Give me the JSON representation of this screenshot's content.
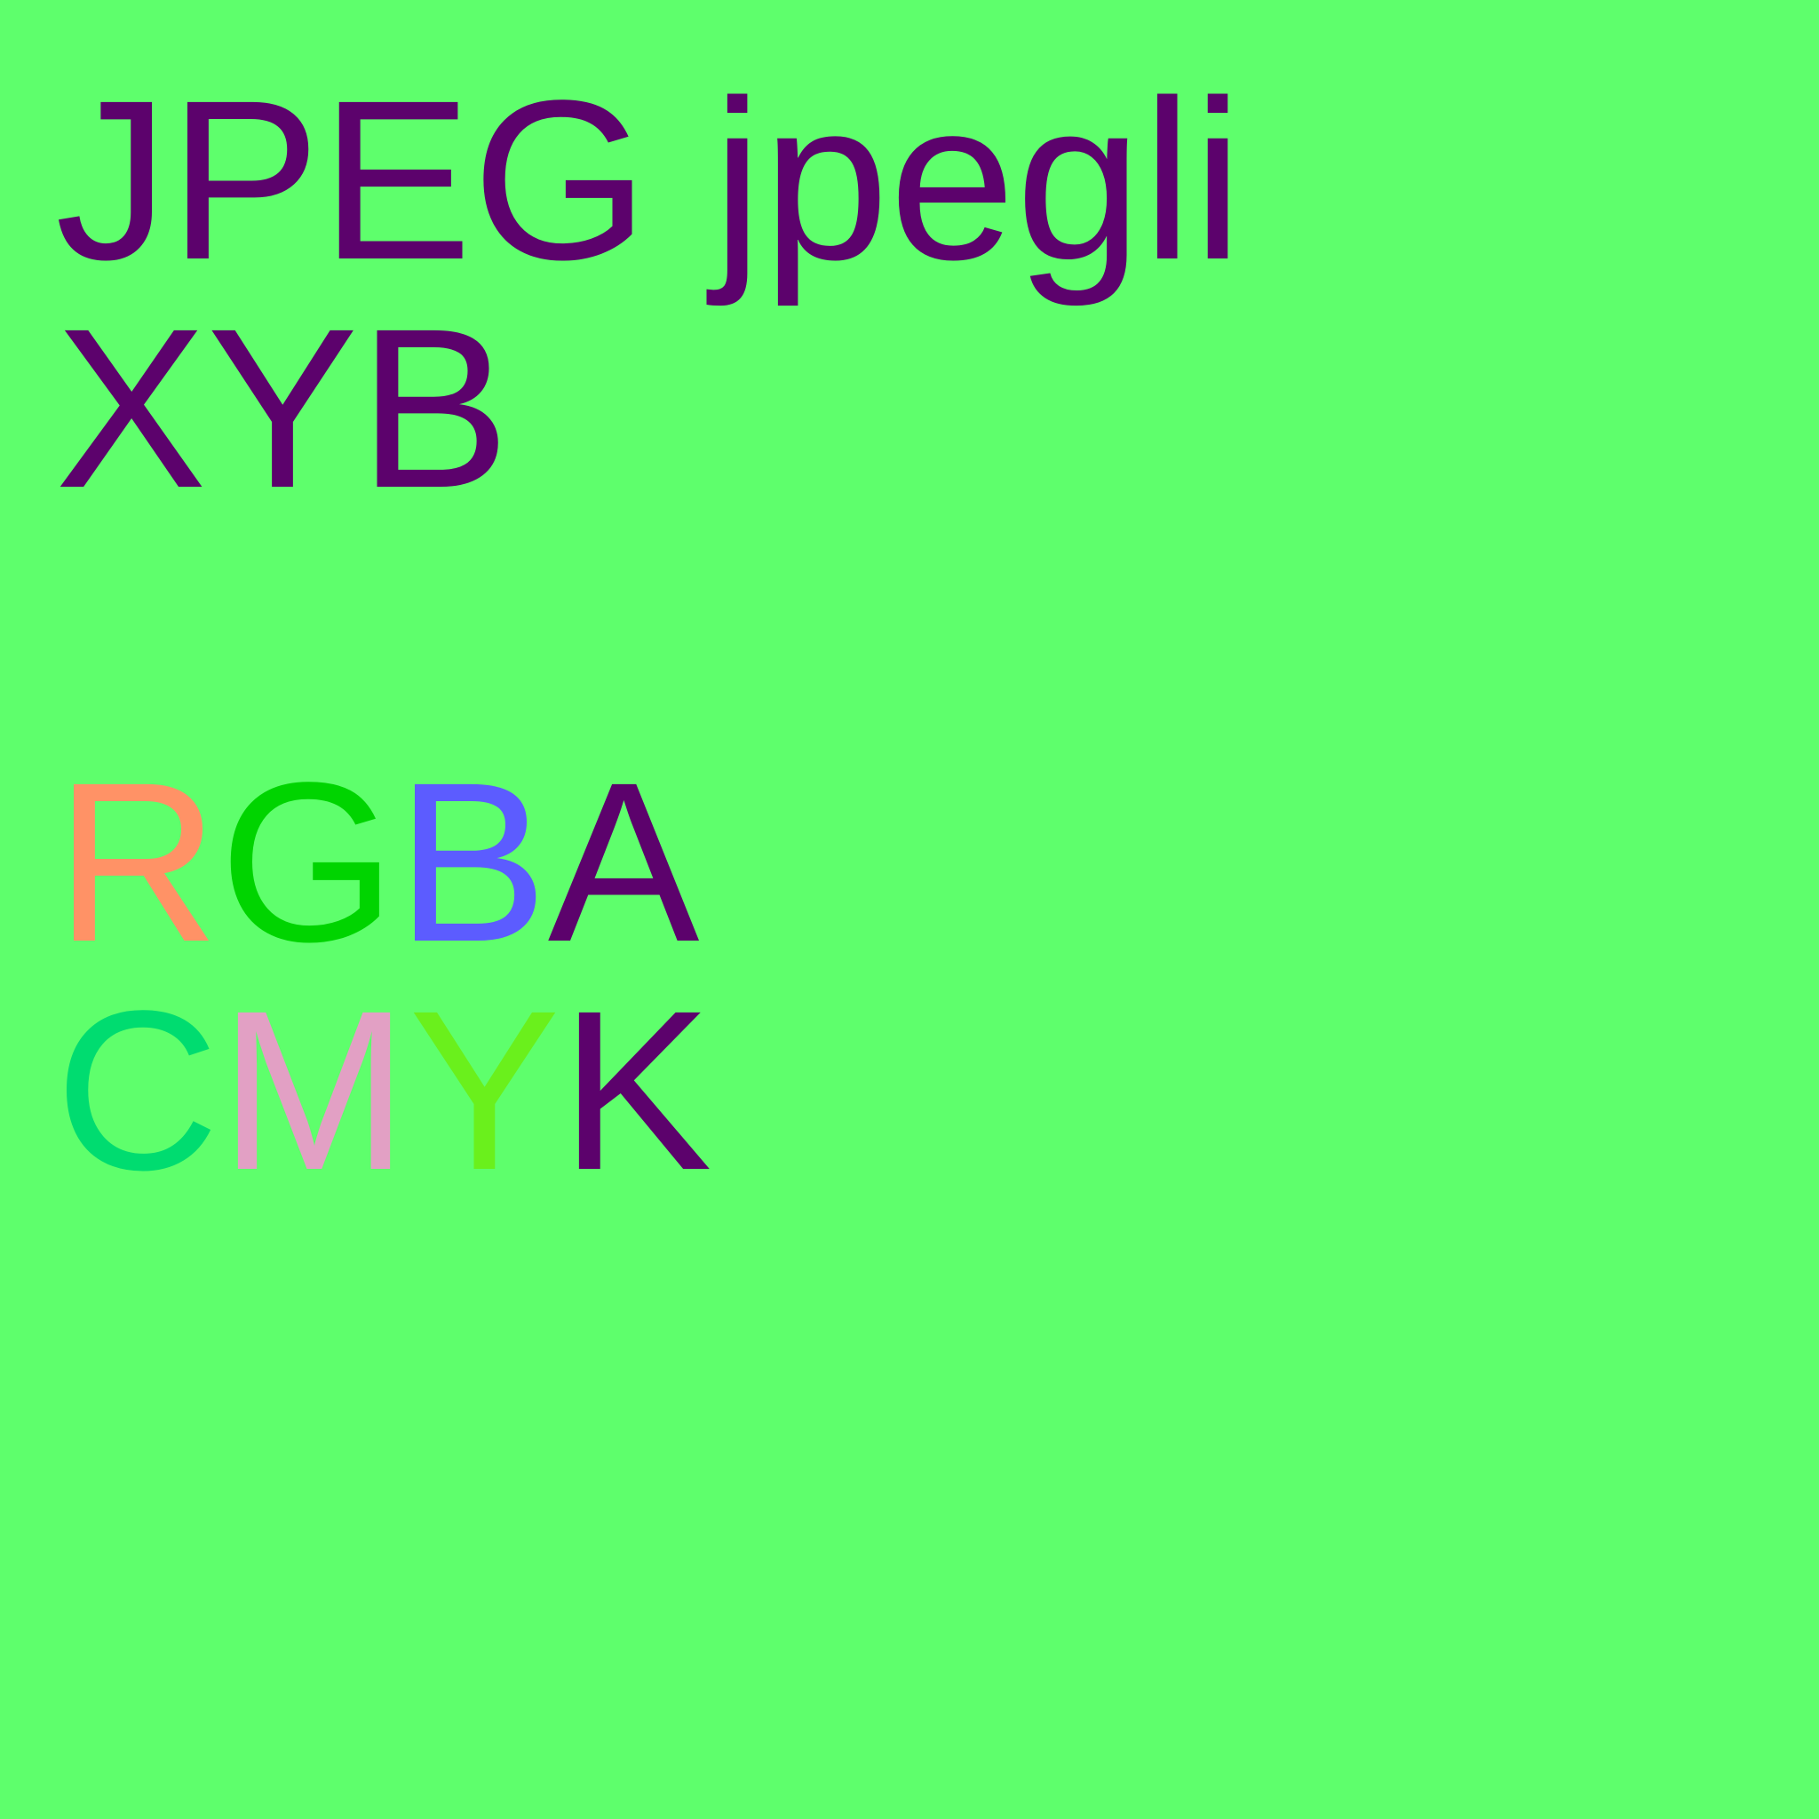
{
  "background_color": "#5eff6c",
  "lines": [
    {
      "chars": [
        {
          "text": "J",
          "color": "#5c026c"
        },
        {
          "text": "P",
          "color": "#5c026c"
        },
        {
          "text": "E",
          "color": "#5c026c"
        },
        {
          "text": "G",
          "color": "#5c026c"
        },
        {
          "text": " ",
          "color": "#5c026c"
        },
        {
          "text": "j",
          "color": "#5c026c"
        },
        {
          "text": "p",
          "color": "#5c026c"
        },
        {
          "text": "e",
          "color": "#5c026c"
        },
        {
          "text": "g",
          "color": "#5c026c"
        },
        {
          "text": "l",
          "color": "#5c026c"
        },
        {
          "text": "i",
          "color": "#5c026c"
        }
      ]
    },
    {
      "chars": [
        {
          "text": "X",
          "color": "#5c026c"
        },
        {
          "text": "Y",
          "color": "#5c026c"
        },
        {
          "text": "B",
          "color": "#5c026c"
        }
      ]
    },
    {
      "chars": [
        {
          "text": "R",
          "color": "#ff9266"
        },
        {
          "text": "G",
          "color": "#00d400"
        },
        {
          "text": "B",
          "color": "#5c5cff"
        },
        {
          "text": "A",
          "color": "#5c026c"
        }
      ]
    },
    {
      "chars": [
        {
          "text": "C",
          "color": "#00dc70"
        },
        {
          "text": "M",
          "color": "#e2a0c4"
        },
        {
          "text": "Y",
          "color": "#6af01c"
        },
        {
          "text": "K",
          "color": "#5c026c"
        }
      ]
    }
  ]
}
